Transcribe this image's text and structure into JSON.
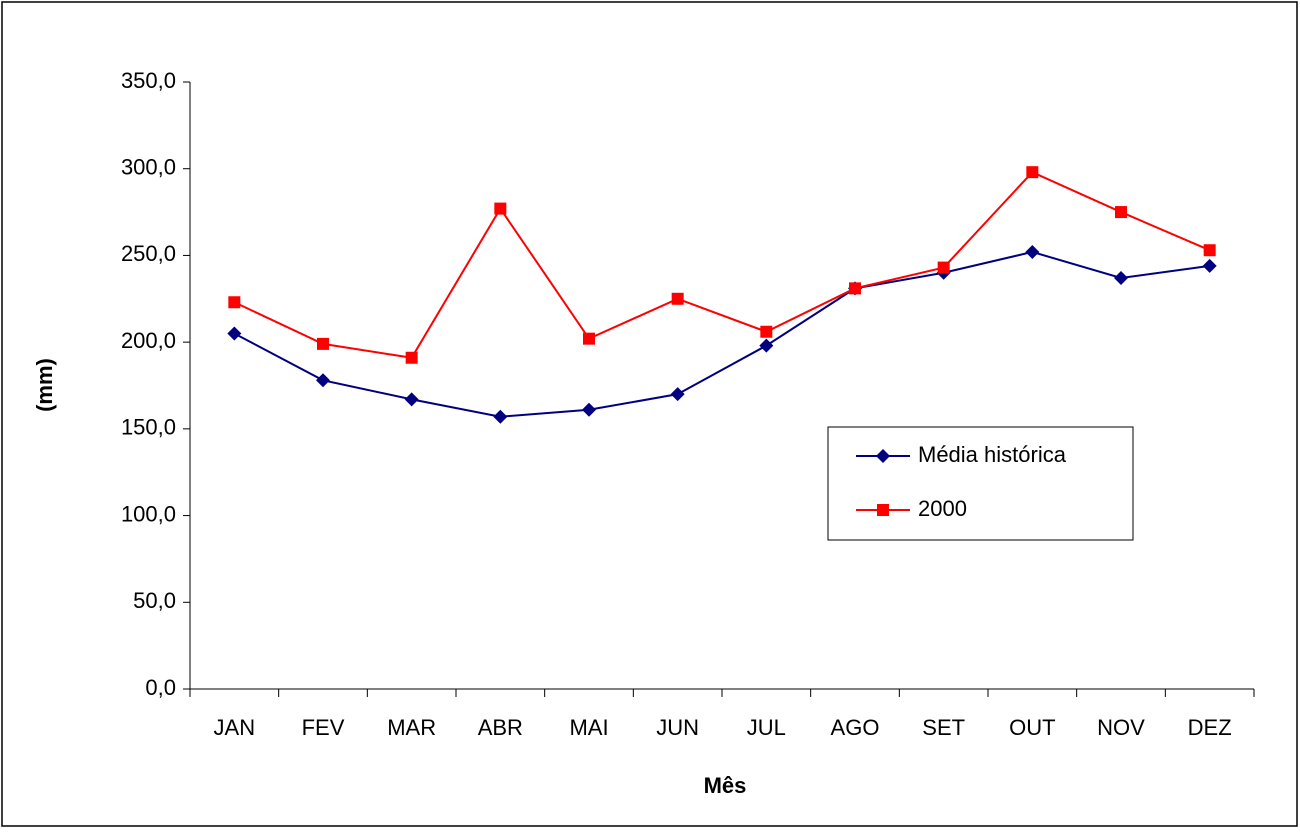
{
  "chart_data": {
    "type": "line",
    "x_label": "Mês",
    "y_label": "(mm)",
    "categories": [
      "JAN",
      "FEV",
      "MAR",
      "ABR",
      "MAI",
      "JUN",
      "JUL",
      "AGO",
      "SET",
      "OUT",
      "NOV",
      "DEZ"
    ],
    "series": [
      {
        "name": "Média histórica",
        "color": "#000080",
        "marker": "diamond",
        "values": [
          205,
          178,
          167,
          157,
          161,
          170,
          198,
          231,
          240,
          252,
          237,
          244
        ]
      },
      {
        "name": "2000",
        "color": "#ff0000",
        "marker": "square",
        "values": [
          223,
          199,
          191,
          277,
          202,
          225,
          206,
          231,
          243,
          298,
          275,
          253
        ]
      }
    ],
    "ylim": [
      0,
      350
    ],
    "yticks": [
      {
        "value": 0,
        "label": "0,0"
      },
      {
        "value": 50,
        "label": "50,0"
      },
      {
        "value": 100,
        "label": "100,0"
      },
      {
        "value": 150,
        "label": "150,0"
      },
      {
        "value": 200,
        "label": "200,0"
      },
      {
        "value": 250,
        "label": "250,0"
      },
      {
        "value": 300,
        "label": "300,0"
      },
      {
        "value": 350,
        "label": "350,0"
      }
    ],
    "grid": false
  }
}
